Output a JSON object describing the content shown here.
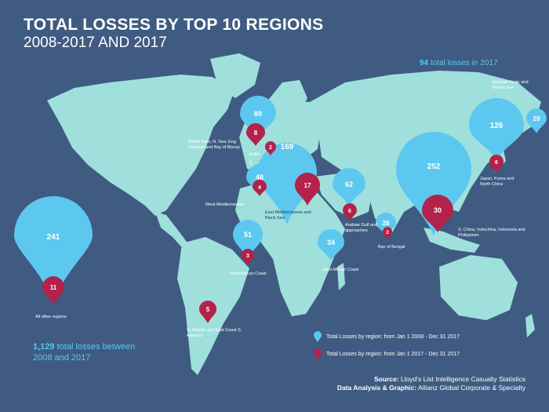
{
  "title": "TOTAL LOSSES BY TOP 10 REGIONS",
  "subtitle": "2008-2017 AND 2017",
  "total_2017_num": "94",
  "total_2017_text": "total losses in 2017",
  "total_decade_num": "1,129",
  "total_decade_text": "total losses between",
  "total_decade_text2": "2008 and 2017",
  "legend": {
    "decade": "Total Losses by region: from Jan 1 2008 - Dec 31 2017",
    "year": "Total Losses by region: from Jan 1 2017 - Dec 31 2017"
  },
  "source_label": "Source:",
  "source_text": "Lloyd's List Intelligence Casualty Statistics",
  "analysis_label": "Data Analysis & Graphic:",
  "analysis_text": "Allianz Global Corporate & Specialty",
  "colors": {
    "background": "#3f5b82",
    "land": "#9fe0dc",
    "decade_pin": "#5cc8ef",
    "year_pin": "#b3224a"
  },
  "regions": [
    {
      "name": "All other regions",
      "decade": "241",
      "year": "11"
    },
    {
      "name": "British Isles, N. Sea, Eng. Channel and Bay of Biscay",
      "decade": "89",
      "year": "8"
    },
    {
      "name": "Baltic",
      "decade": "",
      "year": "2"
    },
    {
      "name": "West Mediterranean",
      "decade": "48",
      "year": "4"
    },
    {
      "name": "East Mediterranean and Black Sea",
      "decade": "169",
      "year": "17"
    },
    {
      "name": "West African Coast",
      "decade": "51",
      "year": "3"
    },
    {
      "name": "Arabian Gulf and approaches",
      "decade": "62",
      "year": "6"
    },
    {
      "name": "East African Coast",
      "decade": "34",
      "year": ""
    },
    {
      "name": "Bay of Bengal",
      "decade": "28",
      "year": "2"
    },
    {
      "name": "S. China, Indochina, Indonesia and Philippines",
      "decade": "252",
      "year": "30"
    },
    {
      "name": "Japan, Korea and North China",
      "decade": "126",
      "year": "6"
    },
    {
      "name": "Russian Arctic and Bering Sea",
      "decade": "29",
      "year": ""
    },
    {
      "name": "S. Atlantic and East Coast S. America",
      "decade": "",
      "year": "5"
    }
  ]
}
